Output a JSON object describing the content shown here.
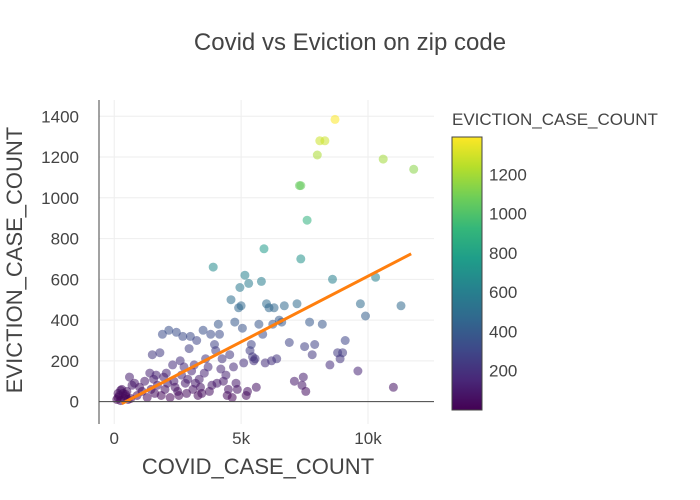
{
  "chart_data": {
    "type": "scatter",
    "title": "Covid vs Eviction on zip code",
    "xlabel": "COVID_CASE_COUNT",
    "ylabel": "EVICTION_CASE_COUNT",
    "xlim": [
      -600,
      12600
    ],
    "ylim": [
      -110,
      1480
    ],
    "x_ticks": [
      0,
      5000,
      10000
    ],
    "x_tick_labels": [
      "0",
      "5k",
      "10k"
    ],
    "y_ticks": [
      0,
      200,
      400,
      600,
      800,
      1000,
      1200,
      1400
    ],
    "y_tick_labels": [
      "0",
      "200",
      "400",
      "600",
      "800",
      "1000",
      "1200",
      "1400"
    ],
    "grid": true,
    "colorbar": {
      "title": "EVICTION_CASE_COUNT",
      "range": [
        0,
        1390
      ],
      "ticks": [
        200,
        400,
        600,
        800,
        1000,
        1200
      ],
      "tick_labels": [
        "200",
        "400",
        "600",
        "800",
        "1000",
        "1200"
      ],
      "colorscale": "viridis"
    },
    "trendline": {
      "color": "#ff7f0e",
      "x": [
        300,
        11700
      ],
      "y": [
        -10,
        725
      ]
    },
    "points": [
      [
        100,
        10
      ],
      [
        150,
        20
      ],
      [
        200,
        30
      ],
      [
        250,
        5
      ],
      [
        300,
        60
      ],
      [
        350,
        40
      ],
      [
        400,
        15
      ],
      [
        450,
        25
      ],
      [
        500,
        50
      ],
      [
        550,
        10
      ],
      [
        600,
        120
      ],
      [
        700,
        80
      ],
      [
        800,
        90
      ],
      [
        900,
        30
      ],
      [
        1000,
        70
      ],
      [
        1100,
        50
      ],
      [
        1200,
        100
      ],
      [
        1300,
        20
      ],
      [
        1400,
        140
      ],
      [
        1450,
        60
      ],
      [
        1500,
        230
      ],
      [
        1550,
        110
      ],
      [
        1600,
        40
      ],
      [
        1650,
        130
      ],
      [
        1700,
        80
      ],
      [
        1800,
        240
      ],
      [
        1850,
        30
      ],
      [
        1900,
        330
      ],
      [
        1950,
        120
      ],
      [
        2000,
        60
      ],
      [
        2050,
        140
      ],
      [
        2100,
        90
      ],
      [
        2150,
        350
      ],
      [
        2200,
        20
      ],
      [
        2300,
        180
      ],
      [
        2350,
        100
      ],
      [
        2400,
        70
      ],
      [
        2450,
        340
      ],
      [
        2500,
        50
      ],
      [
        2550,
        30
      ],
      [
        2600,
        200
      ],
      [
        2650,
        130
      ],
      [
        2700,
        320
      ],
      [
        2750,
        170
      ],
      [
        2800,
        90
      ],
      [
        2850,
        40
      ],
      [
        2900,
        110
      ],
      [
        2950,
        260
      ],
      [
        3000,
        320
      ],
      [
        3050,
        150
      ],
      [
        3100,
        60
      ],
      [
        3150,
        180
      ],
      [
        3200,
        90
      ],
      [
        3250,
        300
      ],
      [
        3300,
        30
      ],
      [
        3350,
        110
      ],
      [
        3400,
        70
      ],
      [
        3450,
        40
      ],
      [
        3500,
        350
      ],
      [
        3550,
        140
      ],
      [
        3600,
        210
      ],
      [
        3700,
        170
      ],
      [
        3750,
        50
      ],
      [
        3800,
        330
      ],
      [
        3850,
        80
      ],
      [
        3900,
        660
      ],
      [
        3950,
        280
      ],
      [
        4000,
        250
      ],
      [
        4050,
        90
      ],
      [
        4100,
        380
      ],
      [
        4150,
        330
      ],
      [
        4200,
        160
      ],
      [
        4250,
        210
      ],
      [
        4300,
        100
      ],
      [
        4400,
        130
      ],
      [
        4450,
        30
      ],
      [
        4500,
        60
      ],
      [
        4550,
        230
      ],
      [
        4600,
        500
      ],
      [
        4650,
        20
      ],
      [
        4700,
        170
      ],
      [
        4750,
        390
      ],
      [
        4800,
        90
      ],
      [
        4850,
        60
      ],
      [
        4900,
        460
      ],
      [
        4950,
        560
      ],
      [
        5000,
        470
      ],
      [
        5050,
        360
      ],
      [
        5100,
        190
      ],
      [
        5150,
        620
      ],
      [
        5200,
        30
      ],
      [
        5250,
        50
      ],
      [
        5300,
        580
      ],
      [
        5350,
        250
      ],
      [
        5400,
        280
      ],
      [
        5450,
        220
      ],
      [
        5500,
        200
      ],
      [
        5550,
        210
      ],
      [
        5600,
        70
      ],
      [
        5700,
        380
      ],
      [
        5800,
        590
      ],
      [
        5850,
        330
      ],
      [
        5900,
        750
      ],
      [
        5950,
        190
      ],
      [
        6000,
        480
      ],
      [
        6100,
        460
      ],
      [
        6200,
        200
      ],
      [
        6250,
        380
      ],
      [
        6300,
        460
      ],
      [
        6400,
        210
      ],
      [
        6500,
        400
      ],
      [
        6600,
        390
      ],
      [
        6700,
        470
      ],
      [
        6900,
        290
      ],
      [
        7100,
        100
      ],
      [
        7200,
        480
      ],
      [
        7300,
        1060
      ],
      [
        7350,
        700
      ],
      [
        7400,
        80
      ],
      [
        7450,
        120
      ],
      [
        7500,
        270
      ],
      [
        7550,
        50
      ],
      [
        7600,
        890
      ],
      [
        7700,
        390
      ],
      [
        7800,
        230
      ],
      [
        7900,
        280
      ],
      [
        8000,
        1210
      ],
      [
        8100,
        1280
      ],
      [
        8200,
        380
      ],
      [
        8300,
        1280
      ],
      [
        8500,
        180
      ],
      [
        8600,
        600
      ],
      [
        8700,
        1385
      ],
      [
        8800,
        240
      ],
      [
        8900,
        210
      ],
      [
        9000,
        240
      ],
      [
        9100,
        300
      ],
      [
        9600,
        150
      ],
      [
        9700,
        480
      ],
      [
        9900,
        420
      ],
      [
        10300,
        610
      ],
      [
        10600,
        1190
      ],
      [
        11000,
        70
      ],
      [
        11300,
        470
      ],
      [
        11800,
        1140
      ],
      [
        7350,
        1060
      ],
      [
        150,
        40
      ],
      [
        250,
        55
      ],
      [
        450,
        35
      ],
      [
        650,
        15
      ]
    ]
  }
}
